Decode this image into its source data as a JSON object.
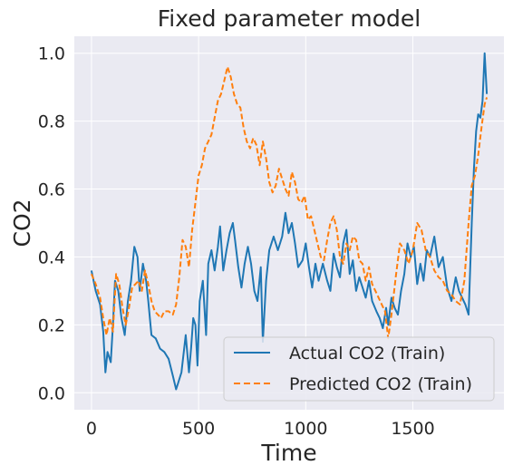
{
  "chart_data": {
    "type": "line",
    "title": "Fixed parameter model",
    "xlabel": "Time",
    "ylabel": "CO2",
    "xlim": [
      -80,
      1925
    ],
    "ylim": [
      -0.05,
      1.05
    ],
    "xticks": [
      0,
      500,
      1000,
      1500
    ],
    "xtick_labels": [
      "0",
      "500",
      "1000",
      "1500"
    ],
    "yticks": [
      0.0,
      0.2,
      0.4,
      0.6,
      0.8,
      1.0
    ],
    "ytick_labels": [
      "0.0",
      "0.2",
      "0.4",
      "0.6",
      "0.8",
      "1.0"
    ],
    "grid": true,
    "legend_placement": "lower-right",
    "series": [
      {
        "name": "Actual CO2 (Train)",
        "color": "#1f77b4",
        "style": "solid",
        "x": [
          0,
          20,
          40,
          55,
          65,
          75,
          90,
          100,
          110,
          125,
          140,
          155,
          170,
          185,
          200,
          215,
          225,
          240,
          255,
          265,
          280,
          300,
          320,
          340,
          360,
          380,
          395,
          405,
          420,
          440,
          455,
          465,
          475,
          485,
          495,
          505,
          520,
          535,
          545,
          560,
          575,
          590,
          600,
          615,
          630,
          645,
          660,
          670,
          685,
          700,
          715,
          730,
          745,
          760,
          775,
          790,
          800,
          815,
          830,
          850,
          870,
          890,
          905,
          920,
          935,
          950,
          965,
          985,
          1000,
          1015,
          1030,
          1045,
          1060,
          1080,
          1100,
          1115,
          1130,
          1145,
          1160,
          1175,
          1190,
          1205,
          1220,
          1235,
          1250,
          1265,
          1280,
          1295,
          1310,
          1330,
          1345,
          1360,
          1375,
          1385,
          1400,
          1415,
          1430,
          1445,
          1460,
          1475,
          1490,
          1505,
          1520,
          1535,
          1550,
          1565,
          1580,
          1600,
          1620,
          1640,
          1660,
          1680,
          1700,
          1715,
          1730,
          1745,
          1760,
          1775,
          1785,
          1795,
          1805,
          1815,
          1825,
          1835,
          1845
        ],
        "y": [
          0.36,
          0.3,
          0.26,
          0.18,
          0.06,
          0.12,
          0.09,
          0.2,
          0.33,
          0.3,
          0.22,
          0.17,
          0.27,
          0.33,
          0.43,
          0.4,
          0.3,
          0.38,
          0.33,
          0.27,
          0.17,
          0.16,
          0.13,
          0.12,
          0.1,
          0.05,
          0.01,
          0.03,
          0.06,
          0.17,
          0.06,
          0.13,
          0.22,
          0.2,
          0.08,
          0.27,
          0.33,
          0.17,
          0.38,
          0.42,
          0.36,
          0.43,
          0.49,
          0.36,
          0.42,
          0.47,
          0.5,
          0.45,
          0.37,
          0.31,
          0.38,
          0.43,
          0.38,
          0.3,
          0.27,
          0.37,
          0.15,
          0.33,
          0.42,
          0.46,
          0.42,
          0.46,
          0.53,
          0.47,
          0.5,
          0.44,
          0.37,
          0.39,
          0.44,
          0.37,
          0.31,
          0.38,
          0.33,
          0.38,
          0.33,
          0.3,
          0.41,
          0.37,
          0.34,
          0.44,
          0.48,
          0.35,
          0.39,
          0.3,
          0.34,
          0.31,
          0.28,
          0.33,
          0.27,
          0.24,
          0.22,
          0.19,
          0.25,
          0.2,
          0.28,
          0.25,
          0.23,
          0.3,
          0.35,
          0.44,
          0.4,
          0.43,
          0.32,
          0.38,
          0.33,
          0.42,
          0.4,
          0.46,
          0.37,
          0.4,
          0.31,
          0.27,
          0.34,
          0.3,
          0.28,
          0.26,
          0.23,
          0.5,
          0.66,
          0.77,
          0.82,
          0.81,
          0.86,
          1.0,
          0.88
        ]
      },
      {
        "name": "Predicted CO2 (Train)",
        "color": "#ff7f0e",
        "style": "dashed",
        "x": [
          0,
          20,
          40,
          55,
          70,
          85,
          100,
          115,
          130,
          145,
          160,
          175,
          190,
          205,
          220,
          235,
          250,
          265,
          280,
          295,
          310,
          325,
          340,
          360,
          380,
          395,
          410,
          425,
          440,
          455,
          470,
          485,
          500,
          515,
          530,
          545,
          560,
          575,
          590,
          605,
          620,
          635,
          650,
          665,
          680,
          695,
          710,
          725,
          740,
          755,
          770,
          785,
          800,
          815,
          830,
          845,
          860,
          875,
          890,
          905,
          920,
          935,
          950,
          965,
          980,
          995,
          1010,
          1025,
          1040,
          1055,
          1070,
          1085,
          1100,
          1115,
          1130,
          1145,
          1160,
          1175,
          1190,
          1205,
          1220,
          1235,
          1250,
          1265,
          1280,
          1295,
          1310,
          1325,
          1340,
          1355,
          1370,
          1385,
          1400,
          1420,
          1440,
          1460,
          1480,
          1500,
          1520,
          1540,
          1560,
          1580,
          1600,
          1620,
          1640,
          1660,
          1680,
          1700,
          1720,
          1740,
          1760,
          1775,
          1790,
          1805,
          1820,
          1835,
          1845
        ],
        "y": [
          0.35,
          0.32,
          0.28,
          0.22,
          0.17,
          0.22,
          0.18,
          0.35,
          0.32,
          0.25,
          0.2,
          0.25,
          0.31,
          0.32,
          0.33,
          0.3,
          0.36,
          0.32,
          0.27,
          0.24,
          0.23,
          0.22,
          0.24,
          0.24,
          0.23,
          0.26,
          0.34,
          0.45,
          0.43,
          0.37,
          0.48,
          0.56,
          0.64,
          0.67,
          0.72,
          0.74,
          0.76,
          0.81,
          0.86,
          0.88,
          0.92,
          0.96,
          0.93,
          0.88,
          0.85,
          0.84,
          0.78,
          0.74,
          0.72,
          0.75,
          0.73,
          0.67,
          0.74,
          0.69,
          0.62,
          0.59,
          0.61,
          0.66,
          0.63,
          0.6,
          0.58,
          0.65,
          0.62,
          0.57,
          0.56,
          0.58,
          0.51,
          0.52,
          0.48,
          0.44,
          0.4,
          0.39,
          0.45,
          0.5,
          0.52,
          0.48,
          0.4,
          0.38,
          0.44,
          0.42,
          0.46,
          0.45,
          0.39,
          0.38,
          0.33,
          0.37,
          0.32,
          0.3,
          0.28,
          0.26,
          0.24,
          0.16,
          0.23,
          0.34,
          0.44,
          0.42,
          0.38,
          0.42,
          0.5,
          0.48,
          0.42,
          0.4,
          0.36,
          0.34,
          0.33,
          0.3,
          0.29,
          0.27,
          0.26,
          0.33,
          0.5,
          0.61,
          0.64,
          0.7,
          0.78,
          0.85,
          0.87
        ]
      }
    ]
  }
}
